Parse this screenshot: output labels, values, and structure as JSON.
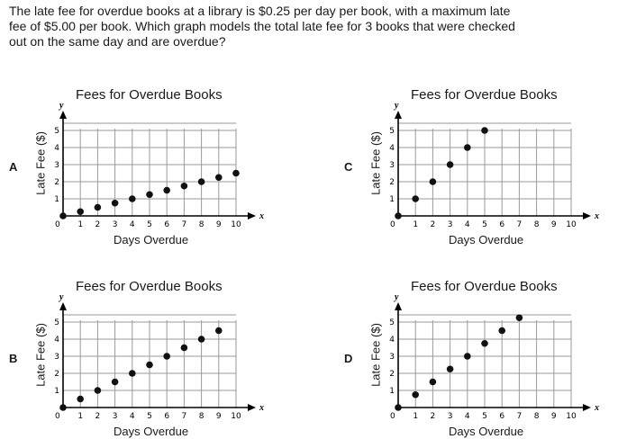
{
  "question": {
    "line1": "The late fee for overdue books at a library is $0.25 per day per book, with a maximum late",
    "line2": "fee of $5.00 per book. Which graph models the total late fee for 3 books that were checked",
    "line3": "out on the same day and are overdue?"
  },
  "chart_data": [
    {
      "option": "A",
      "type": "scatter",
      "title": "Fees for Overdue Books",
      "xlabel": "Days Overdue",
      "ylabel": "Late Fee ($)",
      "x_axis_letter": "x",
      "y_axis_letter": "y",
      "xlim": [
        0,
        10
      ],
      "ylim": [
        0,
        5
      ],
      "grid": true,
      "x": [
        0,
        1,
        2,
        3,
        4,
        5,
        6,
        7,
        8,
        9,
        10
      ],
      "y": [
        0,
        0.25,
        0.5,
        0.75,
        1.0,
        1.25,
        1.5,
        1.75,
        2.0,
        2.25,
        2.5
      ]
    },
    {
      "option": "B",
      "type": "scatter",
      "title": "Fees for Overdue Books",
      "xlabel": "Days Overdue",
      "ylabel": "Late Fee ($)",
      "x_axis_letter": "x",
      "y_axis_letter": "y",
      "xlim": [
        0,
        10
      ],
      "ylim": [
        0,
        5
      ],
      "grid": true,
      "x": [
        0,
        1,
        2,
        3,
        4,
        5,
        6,
        7,
        8,
        9
      ],
      "y": [
        0,
        0.5,
        1.0,
        1.5,
        2.0,
        2.5,
        3.0,
        3.5,
        4.0,
        4.5
      ]
    },
    {
      "option": "C",
      "type": "scatter",
      "title": "Fees for Overdue Books",
      "xlabel": "Days Overdue",
      "ylabel": "Late Fee ($)",
      "x_axis_letter": "x",
      "y_axis_letter": "y",
      "xlim": [
        0,
        10
      ],
      "ylim": [
        0,
        5
      ],
      "grid": true,
      "x": [
        0,
        1,
        2,
        3,
        4,
        5
      ],
      "y": [
        0,
        1,
        2,
        3,
        4,
        5
      ]
    },
    {
      "option": "D",
      "type": "scatter",
      "title": "Fees for Overdue Books",
      "xlabel": "Days Overdue",
      "ylabel": "Late Fee ($)",
      "x_axis_letter": "x",
      "y_axis_letter": "y",
      "xlim": [
        0,
        10
      ],
      "ylim": [
        0,
        5
      ],
      "grid": true,
      "x": [
        0,
        1,
        2,
        3,
        4,
        5,
        6,
        7
      ],
      "y": [
        0,
        0.75,
        1.5,
        2.25,
        3.0,
        3.75,
        4.5,
        5.25
      ]
    }
  ]
}
